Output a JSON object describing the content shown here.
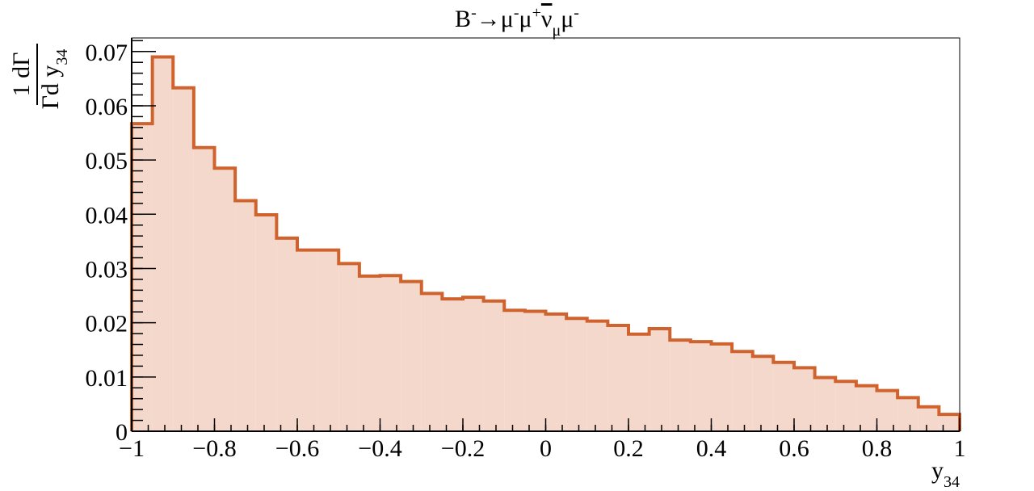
{
  "chart_data": {
    "type": "histogram",
    "title": {
      "base": "B",
      "sup1": "-",
      "arrow": "→μ",
      "sup2": "-",
      "mu": "μ",
      "sup3": "+",
      "nu": "ν",
      "sub_nu": "μ",
      "mu_end": "μ",
      "sup4": "-"
    },
    "ylabel": {
      "numerator": "1 dΓ",
      "denominator": "Γd y",
      "subscript": "34"
    },
    "xlabel": {
      "base": "y",
      "subscript": "34"
    },
    "xlim": [
      -1,
      1
    ],
    "ylim": [
      0,
      0.0725
    ],
    "x_ticks": [
      -1,
      -0.8,
      -0.6,
      -0.4,
      -0.2,
      0,
      0.2,
      0.4,
      0.6,
      0.8,
      1
    ],
    "x_tick_labels": [
      "−1",
      "−0.8",
      "−0.6",
      "−0.4",
      "−0.2",
      "0",
      "0.2",
      "0.4",
      "0.6",
      "0.8",
      "1"
    ],
    "y_ticks": [
      0,
      0.01,
      0.02,
      0.03,
      0.04,
      0.05,
      0.06,
      0.07
    ],
    "y_tick_labels": [
      "0",
      "0.01",
      "0.02",
      "0.03",
      "0.04",
      "0.05",
      "0.06",
      "0.07"
    ],
    "bin_edges": [
      -1,
      -0.95,
      -0.9,
      -0.85,
      -0.8,
      -0.75,
      -0.7,
      -0.65,
      -0.6,
      -0.55,
      -0.5,
      -0.45,
      -0.4,
      -0.35,
      -0.3,
      -0.25,
      -0.2,
      -0.15,
      -0.1,
      -0.05,
      0,
      0.05,
      0.1,
      0.15,
      0.2,
      0.25,
      0.3,
      0.35,
      0.4,
      0.45,
      0.5,
      0.55,
      0.6,
      0.65,
      0.7,
      0.75,
      0.8,
      0.85,
      0.9,
      0.95,
      1
    ],
    "values": [
      0.0567,
      0.069,
      0.0633,
      0.0523,
      0.0485,
      0.0425,
      0.0399,
      0.0356,
      0.0334,
      0.0334,
      0.0309,
      0.0286,
      0.0287,
      0.0276,
      0.0254,
      0.0244,
      0.0247,
      0.024,
      0.0223,
      0.0221,
      0.0216,
      0.0208,
      0.0203,
      0.0195,
      0.0179,
      0.0189,
      0.0168,
      0.0165,
      0.0161,
      0.0147,
      0.0138,
      0.0127,
      0.0117,
      0.0099,
      0.0092,
      0.0084,
      0.0075,
      0.0062,
      0.0045,
      0.0031
    ],
    "line_color": "#d0632d",
    "fill_color": "#f5d8cc",
    "grid": false,
    "legend": "none"
  }
}
